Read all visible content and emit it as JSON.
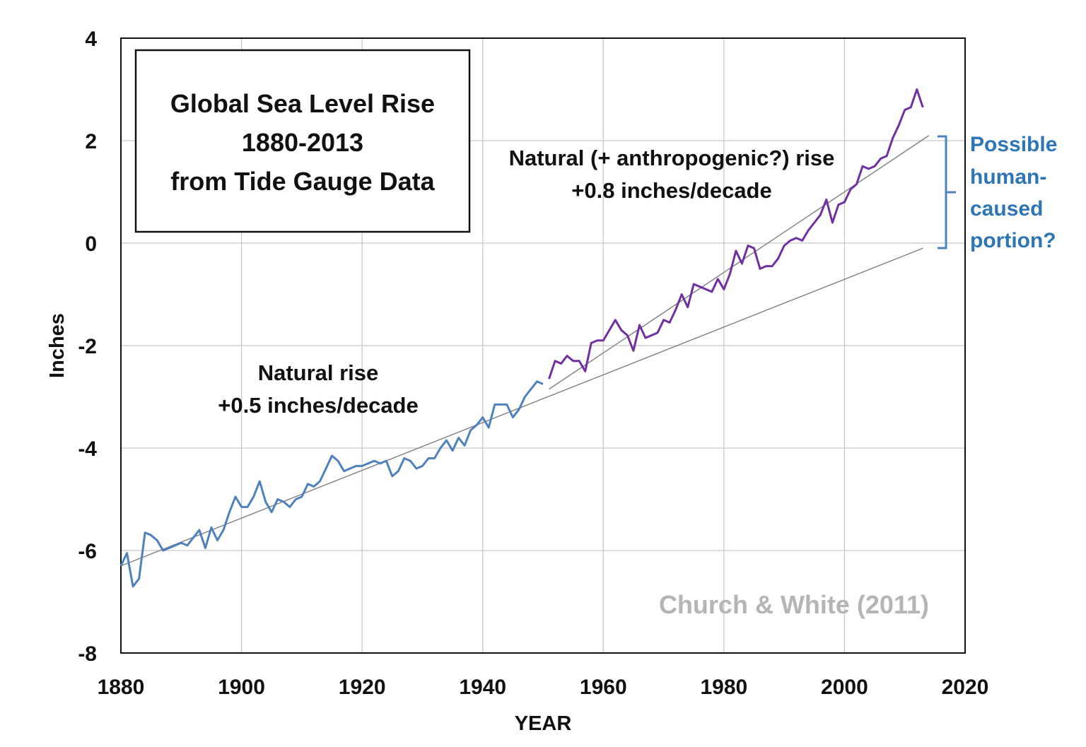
{
  "chart_data": {
    "type": "line",
    "title_lines": [
      "Global Sea Level Rise",
      "1880-2013",
      "from Tide Gauge Data"
    ],
    "xlabel": "YEAR",
    "ylabel": "Inches",
    "xlim": [
      1880,
      2020
    ],
    "ylim": [
      -8,
      4
    ],
    "x_ticks": [
      "1880",
      "1900",
      "1920",
      "1940",
      "1960",
      "1980",
      "2000",
      "2020"
    ],
    "y_ticks": [
      "4",
      "2",
      "0",
      "-2",
      "-4",
      "-6",
      "-8"
    ],
    "grid": true,
    "series": [
      {
        "color": "#4f81bd",
        "x": [
          1880,
          1881,
          1882,
          1883,
          1884,
          1885,
          1886,
          1887,
          1888,
          1889,
          1890,
          1891,
          1892,
          1893,
          1894,
          1895,
          1896,
          1897,
          1898,
          1899,
          1900,
          1901,
          1902,
          1903,
          1904,
          1905,
          1906,
          1907,
          1908,
          1909,
          1910,
          1911,
          1912,
          1913,
          1914,
          1915,
          1916,
          1917,
          1918,
          1919,
          1920,
          1921,
          1922,
          1923,
          1924,
          1925,
          1926,
          1927,
          1928,
          1929,
          1930,
          1931,
          1932,
          1933,
          1934,
          1935,
          1936,
          1937,
          1938,
          1939,
          1940,
          1941,
          1942,
          1943,
          1944,
          1945,
          1946,
          1947,
          1948,
          1949,
          1950
        ],
        "y": [
          -6.3,
          -6.05,
          -6.7,
          -6.55,
          -5.65,
          -5.7,
          -5.8,
          -6.0,
          -5.95,
          -5.9,
          -5.85,
          -5.9,
          -5.75,
          -5.6,
          -5.95,
          -5.55,
          -5.8,
          -5.6,
          -5.25,
          -4.95,
          -5.15,
          -5.15,
          -4.95,
          -4.65,
          -5.05,
          -5.25,
          -5.0,
          -5.05,
          -5.15,
          -5.0,
          -4.95,
          -4.7,
          -4.75,
          -4.65,
          -4.4,
          -4.15,
          -4.25,
          -4.45,
          -4.4,
          -4.35,
          -4.35,
          -4.3,
          -4.25,
          -4.3,
          -4.25,
          -4.55,
          -4.45,
          -4.2,
          -4.25,
          -4.4,
          -4.35,
          -4.2,
          -4.2,
          -4.0,
          -3.85,
          -4.05,
          -3.8,
          -3.95,
          -3.65,
          -3.55,
          -3.4,
          -3.6,
          -3.15,
          -3.15,
          -3.15,
          -3.4,
          -3.25,
          -3.0,
          -2.85,
          -2.7,
          -2.75
        ]
      },
      {
        "color": "#7030a0",
        "x": [
          1951,
          1952,
          1953,
          1954,
          1955,
          1956,
          1957,
          1958,
          1959,
          1960,
          1961,
          1962,
          1963,
          1964,
          1965,
          1966,
          1967,
          1968,
          1969,
          1970,
          1971,
          1972,
          1973,
          1974,
          1975,
          1976,
          1977,
          1978,
          1979,
          1980,
          1981,
          1982,
          1983,
          1984,
          1985,
          1986,
          1987,
          1988,
          1989,
          1990,
          1991,
          1992,
          1993,
          1994,
          1995,
          1996,
          1997,
          1998,
          1999,
          2000,
          2001,
          2002,
          2003,
          2004,
          2005,
          2006,
          2007,
          2008,
          2009,
          2010,
          2011,
          2012,
          2013
        ],
        "y": [
          -2.65,
          -2.3,
          -2.35,
          -2.2,
          -2.3,
          -2.3,
          -2.5,
          -1.95,
          -1.9,
          -1.9,
          -1.7,
          -1.5,
          -1.7,
          -1.8,
          -2.1,
          -1.6,
          -1.85,
          -1.8,
          -1.75,
          -1.5,
          -1.55,
          -1.3,
          -1.0,
          -1.25,
          -0.8,
          -0.85,
          -0.9,
          -0.95,
          -0.7,
          -0.9,
          -0.6,
          -0.15,
          -0.4,
          -0.05,
          -0.1,
          -0.5,
          -0.45,
          -0.45,
          -0.3,
          -0.05,
          0.05,
          0.1,
          0.05,
          0.25,
          0.4,
          0.55,
          0.85,
          0.4,
          0.75,
          0.8,
          1.05,
          1.15,
          1.5,
          1.45,
          1.5,
          1.65,
          1.7,
          2.05,
          2.3,
          2.6,
          2.65,
          3.0,
          2.65
        ]
      }
    ],
    "trend_lines": [
      {
        "name": "natural",
        "color": "#7f7f7f",
        "x": [
          1880,
          2013
        ],
        "y": [
          -6.3,
          -0.1
        ]
      },
      {
        "name": "natural-plus-anthropogenic",
        "color": "#7f7f7f",
        "x": [
          1951,
          2014
        ],
        "y": [
          -2.85,
          2.1
        ]
      }
    ],
    "annotations": {
      "natural": [
        "Natural rise",
        "+0.5 inches/decade"
      ],
      "recent": [
        "Natural (+ anthropogenic?) rise",
        "+0.8 inches/decade"
      ],
      "human": [
        "Possible",
        "human-",
        "caused",
        "portion?"
      ],
      "source": "Church & White (2011)"
    },
    "colors": {
      "human_text": "#2e75b6",
      "bracket": "#4f81bd"
    }
  }
}
